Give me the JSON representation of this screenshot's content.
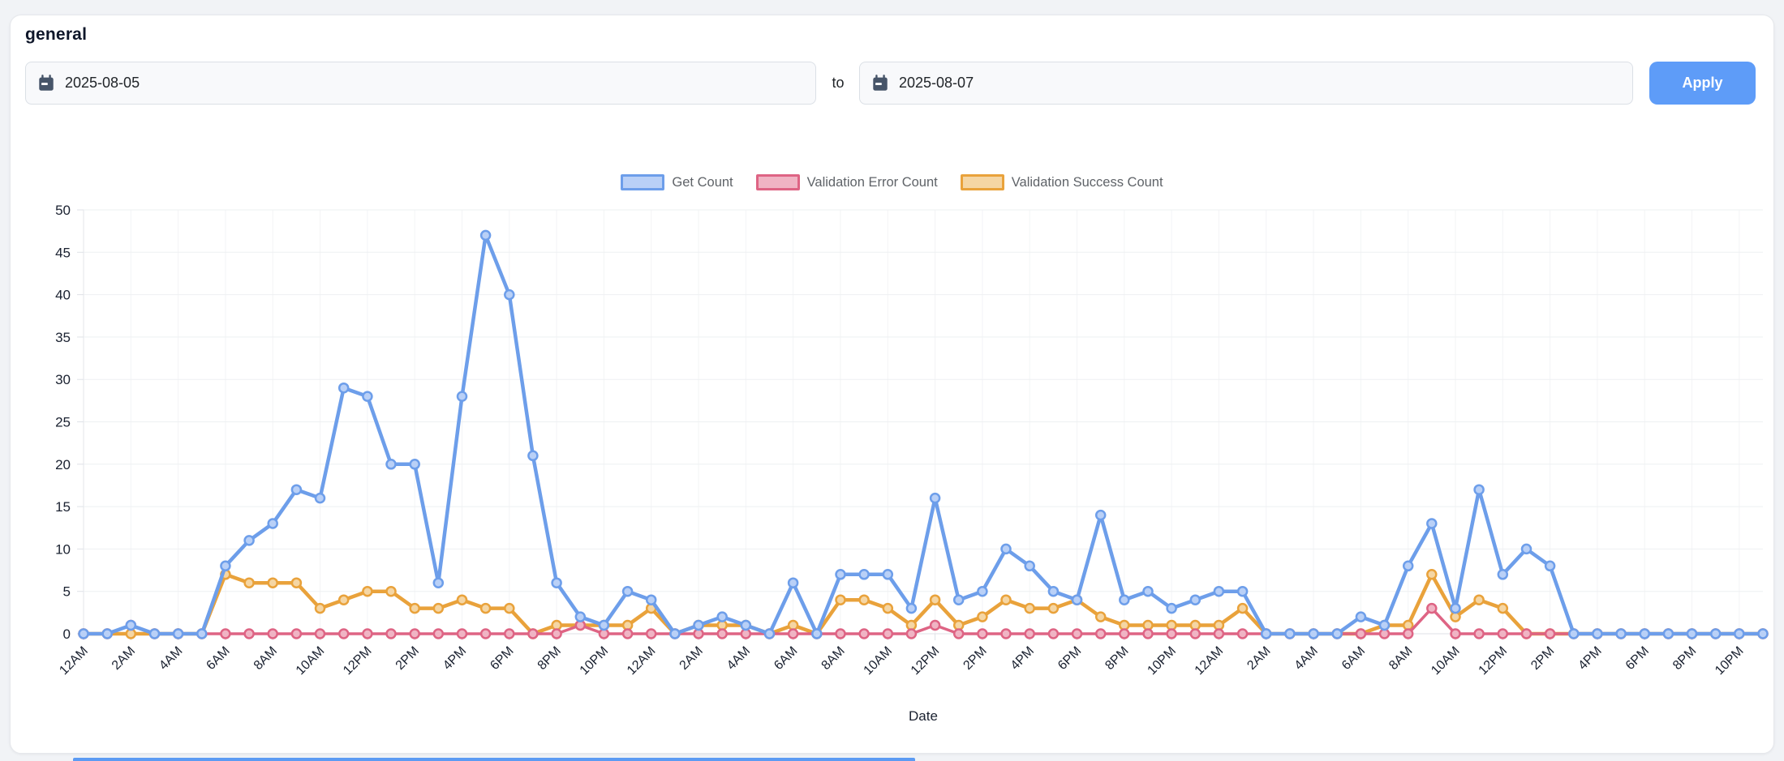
{
  "card": {
    "title": "general"
  },
  "controls": {
    "start_date": "2025-08-05",
    "to_label": "to",
    "end_date": "2025-08-07",
    "apply_label": "Apply",
    "accent_color": "#5e9cf8"
  },
  "chart_data": {
    "type": "line",
    "title": "",
    "xlabel": "Date",
    "ylabel": "",
    "ylim": [
      0,
      50
    ],
    "y_ticks": [
      0,
      5,
      10,
      15,
      20,
      25,
      30,
      35,
      40,
      45,
      50
    ],
    "grid": true,
    "legend_position": "top",
    "x_unit": "hour",
    "points_per_day": 24,
    "x_tick_labels": [
      "12AM",
      "2AM",
      "4AM",
      "6AM",
      "8AM",
      "10AM",
      "12PM",
      "2PM",
      "4PM",
      "6PM",
      "8PM",
      "10PM",
      "12AM",
      "2AM",
      "4AM",
      "6AM",
      "8AM",
      "10AM",
      "12PM",
      "2PM",
      "4PM",
      "6PM",
      "8PM",
      "10PM",
      "12AM",
      "2AM",
      "4AM",
      "6AM",
      "8AM",
      "10AM",
      "12PM",
      "2PM",
      "4PM",
      "6PM",
      "8PM",
      "10PM"
    ],
    "series": [
      {
        "name": "Get Count",
        "color": "#6d9eea",
        "point_fill": "#b9d0f7",
        "line_width": 4.5,
        "values": [
          0,
          0,
          1,
          0,
          0,
          0,
          8,
          11,
          13,
          17,
          16,
          29,
          28,
          20,
          20,
          6,
          28,
          47,
          40,
          21,
          6,
          2,
          1,
          5,
          4,
          0,
          1,
          2,
          1,
          0,
          6,
          0,
          7,
          7,
          7,
          3,
          16,
          4,
          5,
          10,
          8,
          5,
          4,
          14,
          4,
          5,
          3,
          4,
          5,
          5,
          0,
          0,
          0,
          0,
          2,
          1,
          8,
          13,
          3,
          17,
          7,
          10,
          8,
          0,
          0,
          0,
          0,
          0,
          0,
          0,
          0,
          0
        ]
      },
      {
        "name": "Validation Error Count",
        "color": "#de6484",
        "point_fill": "#f0b4c4",
        "line_width": 3.5,
        "values": [
          0,
          0,
          1,
          0,
          0,
          0,
          0,
          0,
          0,
          0,
          0,
          0,
          0,
          0,
          0,
          0,
          0,
          0,
          0,
          0,
          0,
          1,
          0,
          0,
          0,
          0,
          0,
          0,
          0,
          0,
          0,
          0,
          0,
          0,
          0,
          0,
          1,
          0,
          0,
          0,
          0,
          0,
          0,
          0,
          0,
          0,
          0,
          0,
          0,
          0,
          0,
          0,
          0,
          0,
          0,
          0,
          0,
          3,
          0,
          0,
          0,
          0,
          0,
          0,
          0,
          0,
          0,
          0,
          0,
          0,
          0,
          0
        ]
      },
      {
        "name": "Validation Success Count",
        "color": "#e9a23b",
        "point_fill": "#f5d6a4",
        "line_width": 4.5,
        "values": [
          0,
          0,
          0,
          0,
          0,
          0,
          7,
          6,
          6,
          6,
          3,
          4,
          5,
          5,
          3,
          3,
          4,
          3,
          3,
          0,
          1,
          1,
          1,
          1,
          3,
          0,
          1,
          1,
          1,
          0,
          1,
          0,
          4,
          4,
          3,
          1,
          4,
          1,
          2,
          4,
          3,
          3,
          4,
          2,
          1,
          1,
          1,
          1,
          1,
          3,
          0,
          0,
          0,
          0,
          0,
          1,
          1,
          7,
          2,
          4,
          3,
          0,
          0,
          0,
          0,
          0,
          0,
          0,
          0,
          0,
          0,
          0
        ]
      }
    ]
  }
}
